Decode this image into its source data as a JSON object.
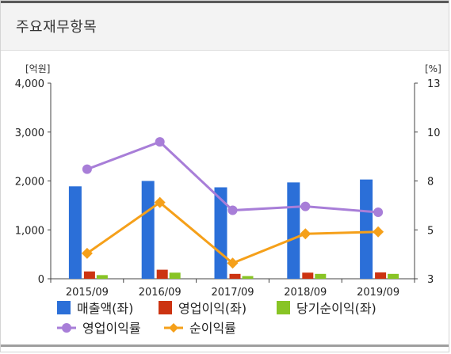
{
  "header": {
    "title": "주요재무항목"
  },
  "chart_data": {
    "type": "bar",
    "categories": [
      "2015/09",
      "2016/09",
      "2017/09",
      "2018/09",
      "2019/09"
    ],
    "left_axis": {
      "unit_label": "[억원]",
      "ylim": [
        0,
        4000
      ],
      "ticks": [
        "0",
        "1,000",
        "2,000",
        "3,000",
        "4,000"
      ]
    },
    "right_axis": {
      "unit_label": "[%]",
      "ylim": [
        3,
        13
      ],
      "ticks": [
        "3",
        "5",
        "8",
        "10",
        "13"
      ]
    },
    "grid": false,
    "legend_position": "bottom",
    "series": [
      {
        "name": "매출액(좌)",
        "type": "bar",
        "axis": "left",
        "color": "#2b6fd8",
        "values": [
          1890,
          2000,
          1870,
          1970,
          2030
        ]
      },
      {
        "name": "영업이익(좌)",
        "type": "bar",
        "axis": "left",
        "color": "#cc3311",
        "values": [
          150,
          185,
          100,
          125,
          130
        ]
      },
      {
        "name": "당기순이익(좌)",
        "type": "bar",
        "axis": "left",
        "color": "#88c425",
        "values": [
          75,
          125,
          55,
          100,
          100
        ]
      },
      {
        "name": "영업이익률",
        "type": "line",
        "axis": "right",
        "color": "#a87ed8",
        "marker": "circle",
        "values": [
          8.6,
          10.0,
          6.5,
          6.7,
          6.4
        ]
      },
      {
        "name": "순이익률",
        "type": "line",
        "axis": "right",
        "color": "#f5a01a",
        "marker": "diamond",
        "values": [
          4.3,
          6.9,
          3.8,
          5.3,
          5.4
        ]
      }
    ]
  }
}
